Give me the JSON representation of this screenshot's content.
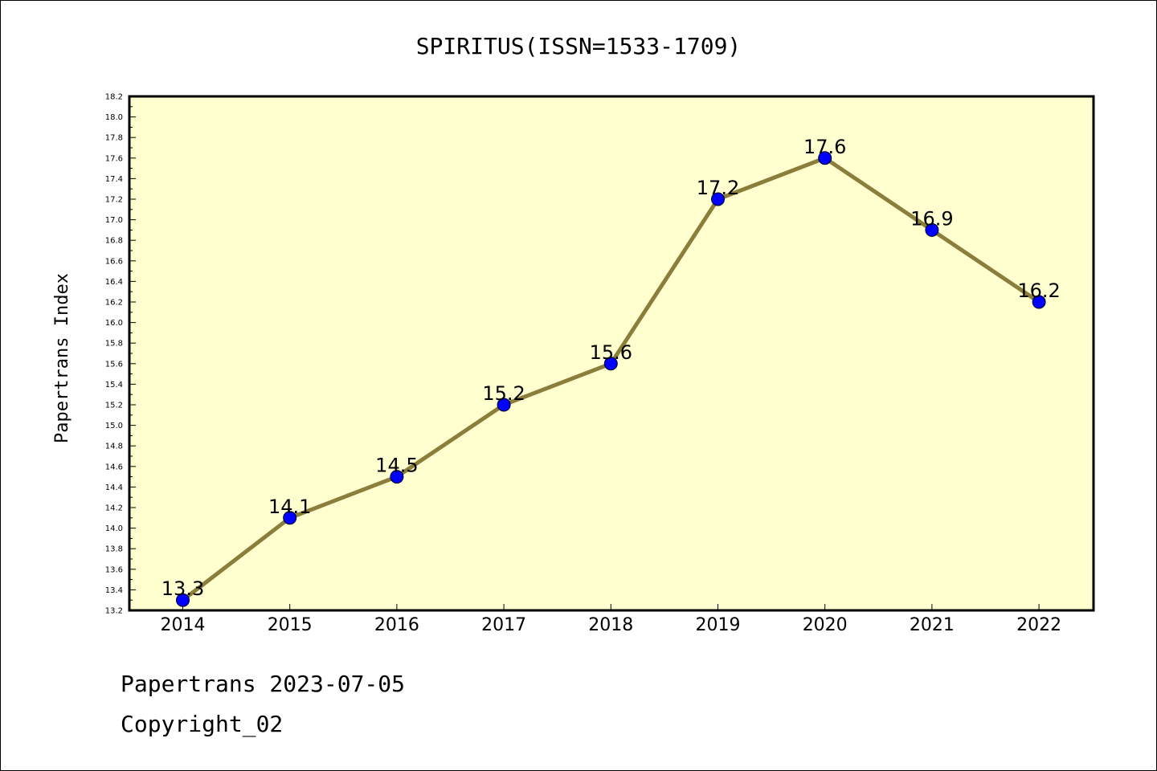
{
  "chart_data": {
    "type": "line",
    "title": "SPIRITUS(ISSN=1533-1709)",
    "ylabel": "Papertrans Index",
    "xlabel": "",
    "categories": [
      "2014",
      "2015",
      "2016",
      "2017",
      "2018",
      "2019",
      "2020",
      "2021",
      "2022"
    ],
    "values": [
      13.3,
      14.1,
      14.5,
      15.2,
      15.6,
      17.2,
      17.6,
      16.9,
      16.2
    ],
    "data_labels": [
      "13.3",
      "14.1",
      "14.5",
      "15.2",
      "15.6",
      "17.2",
      "17.6",
      "16.9",
      "16.2"
    ],
    "ylim": [
      13.2,
      18.2
    ],
    "yticks": [
      "13.2",
      "13.4",
      "13.6",
      "13.8",
      "14.0",
      "14.2",
      "14.4",
      "14.6",
      "14.8",
      "15.0",
      "15.2",
      "15.4",
      "15.6",
      "15.8",
      "16.0",
      "16.2",
      "16.4",
      "16.6",
      "16.8",
      "17.0",
      "17.2",
      "17.4",
      "17.6",
      "17.8",
      "18.0",
      "18.2"
    ],
    "grid": false,
    "colors": {
      "plot_background": "#ffffd0",
      "line": "#8b7d3a",
      "marker": "#0000ff"
    }
  },
  "footer": {
    "line1": "Papertrans 2023-07-05",
    "line2": "Copyright_02"
  }
}
